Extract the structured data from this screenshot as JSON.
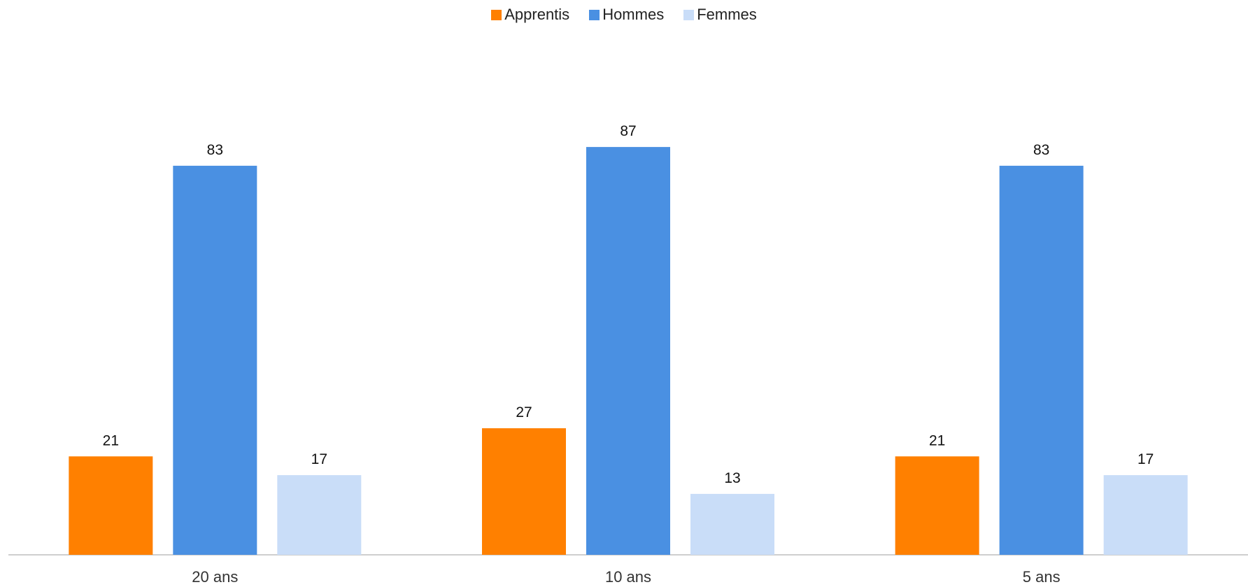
{
  "chart_data": {
    "type": "bar",
    "title": "",
    "xlabel": "",
    "ylabel": "",
    "ylim": [
      0,
      100
    ],
    "grid": false,
    "legend_position": "top-center",
    "categories": [
      "20 ans",
      "10 ans",
      "5 ans"
    ],
    "series": [
      {
        "name": "Apprentis",
        "color": "#FF8000",
        "values": [
          21,
          27,
          21
        ]
      },
      {
        "name": "Hommes",
        "color": "#4A90E2",
        "values": [
          83,
          87,
          83
        ]
      },
      {
        "name": "Femmes",
        "color": "#C9DDF8",
        "values": [
          17,
          13,
          17
        ]
      }
    ]
  }
}
